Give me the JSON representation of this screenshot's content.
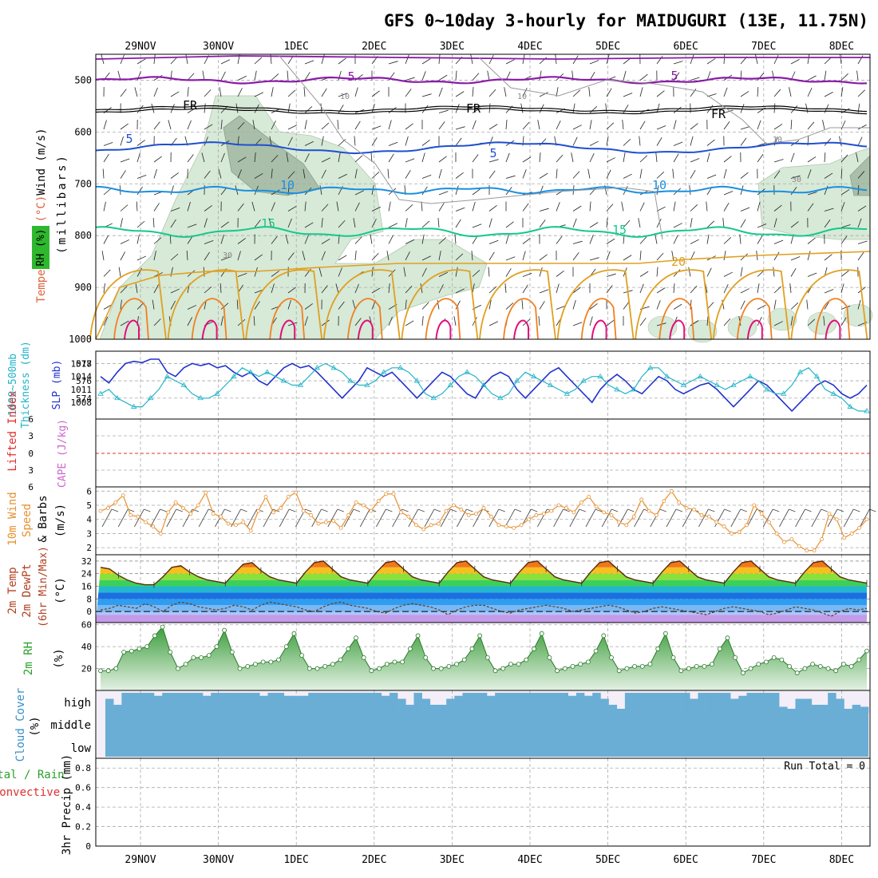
{
  "title": "GFS 0~10day 3-hourly for MAIDUGURI (13E, 11.75N)",
  "date_labels": [
    "29NOV",
    "30NOV",
    "1DEC",
    "2DEC",
    "3DEC",
    "4DEC",
    "5DEC",
    "6DEC",
    "7DEC",
    "8DEC"
  ],
  "colors": {
    "grid": "#aaaaaa",
    "rh_shade": "#d7e9d7",
    "rh_dark": "#a9bfa9",
    "purple": "#8a1aa8",
    "blue": "#1f4fd0",
    "lightblue": "#1a8fe0",
    "teal": "#14c88c",
    "gold": "#e0a020",
    "orange": "#f08020",
    "magenta": "#e0107a",
    "slp": "#2233cc",
    "thick": "#22b4c8",
    "wind10": "#e89030",
    "rh2m": "#2ca02c",
    "cloud": "#6aaed6",
    "cloud_bg": "#f3eef7",
    "red": "#e03030",
    "cape": "#cc66cc"
  },
  "chart_data": [
    {
      "panel": "upper-air",
      "type": "contour",
      "ylabel_parts": [
        "Wind (m/s)",
        "Temperature (°C)",
        "RH (%)",
        "(millibars)"
      ],
      "y_ticks": [
        500,
        600,
        700,
        800,
        900,
        1000
      ],
      "ylim": [
        450,
        1000
      ],
      "contour_labels": {
        "temperature": [
          "5",
          "5",
          "FR",
          "FR",
          "FR",
          "5",
          "5",
          "10",
          "10",
          "15",
          "15",
          "20"
        ],
        "rh": [
          "10",
          "10",
          "10",
          "30",
          "30"
        ]
      },
      "isotherms_hpa": {
        "minus5": [
          500,
          505
        ],
        "freezing": [
          555,
          565
        ],
        "plus5": [
          615,
          655
        ],
        "plus10": [
          700,
          725
        ],
        "plus15": [
          785,
          825
        ],
        "plus20": [
          850,
          900
        ]
      }
    },
    {
      "panel": "slp-thickness",
      "type": "line",
      "ylabel_parts": [
        "1000~500mb",
        "Thickness (dm)",
        "SLP (mb)"
      ],
      "left_ticks": [
        574,
        576,
        578
      ],
      "right_ticks": [
        1008,
        1011,
        1014,
        1017
      ],
      "series": [
        {
          "name": "SLP (mb)",
          "axis": "right",
          "values": [
            1014,
            1012.5,
            1015,
            1017,
            1017.5,
            1017.2,
            1018,
            1018,
            1015,
            1014,
            1016,
            1017,
            1016.5,
            1017,
            1016,
            1016.5,
            1015,
            1014,
            1015,
            1013,
            1012,
            1014,
            1016,
            1017,
            1016,
            1016.5,
            1015,
            1013,
            1011,
            1009,
            1011,
            1013,
            1016,
            1015,
            1014,
            1015,
            1013,
            1011,
            1009,
            1011,
            1013,
            1015,
            1014,
            1012,
            1010,
            1009,
            1012,
            1014,
            1015,
            1014,
            1011,
            1009,
            1011,
            1013,
            1015,
            1016,
            1014,
            1012,
            1010,
            1008,
            1011,
            1013,
            1014.5,
            1013,
            1011,
            1010,
            1012,
            1014,
            1013,
            1011,
            1010,
            1011,
            1012,
            1012.5,
            1011,
            1009,
            1007,
            1009,
            1011,
            1013,
            1012,
            1010,
            1008,
            1006,
            1008,
            1010,
            1012,
            1013,
            1012,
            1010,
            1009,
            1010,
            1012
          ]
        },
        {
          "name": "Thickness (dm)",
          "axis": "left",
          "values": [
            574.5,
            575,
            574,
            573.5,
            573,
            573,
            574,
            575,
            576.5,
            576,
            575.5,
            574.5,
            574,
            574,
            574.5,
            575.5,
            576.5,
            577.5,
            577,
            576.5,
            577,
            576.5,
            576,
            575.5,
            575.5,
            576.5,
            577.5,
            578,
            577.5,
            577,
            576,
            575.5,
            575.5,
            576,
            577,
            577.5,
            577.5,
            577,
            576,
            574.5,
            574,
            574.5,
            575.5,
            576.5,
            577,
            576.5,
            575.5,
            574.5,
            574,
            574.5,
            576,
            577,
            576.5,
            576,
            575.5,
            575,
            574.5,
            575,
            576,
            576.5,
            576.5,
            575.5,
            575,
            574.5,
            575,
            576.5,
            577.5,
            577.5,
            576.5,
            576,
            575.5,
            576,
            576.5,
            576,
            575.5,
            575,
            575.5,
            576,
            576.5,
            576,
            575,
            574.5,
            574.5,
            575.5,
            577,
            577.5,
            576.5,
            575,
            574.5,
            574,
            573,
            572.5,
            572.5
          ]
        }
      ]
    },
    {
      "panel": "cape-lifted-index",
      "type": "line",
      "ylabel_parts": [
        "Lifted Index",
        "CAPE (J/kg)"
      ],
      "y_ticks": [
        "6",
        "3",
        "0",
        "3",
        "6"
      ],
      "series": []
    },
    {
      "panel": "10m-wind",
      "type": "line",
      "ylabel_parts": [
        "10m Wind",
        "Speed",
        "& Barbs",
        "(m/s)"
      ],
      "y_ticks": [
        2,
        3,
        4,
        5,
        6
      ],
      "ylim": [
        1.5,
        6.3
      ],
      "series": [
        {
          "name": "10m Wind Speed",
          "values": [
            4.6,
            4.8,
            5.2,
            5.7,
            4.3,
            4.2,
            3.8,
            3.5,
            3.0,
            4.5,
            5.2,
            4.8,
            4.4,
            5.0,
            5.9,
            4.4,
            4.2,
            3.7,
            3.6,
            3.8,
            3.2,
            4.6,
            5.6,
            4.5,
            4.8,
            5.6,
            5.9,
            4.6,
            4.3,
            3.7,
            3.8,
            3.9,
            3.4,
            4.3,
            5.2,
            5.0,
            4.6,
            5.3,
            5.8,
            5.8,
            4.5,
            4.2,
            3.6,
            3.3,
            3.6,
            3.7,
            4.6,
            5.0,
            4.7,
            4.3,
            4.4,
            4.8,
            4.2,
            3.6,
            3.5,
            3.4,
            3.6,
            4.0,
            4.3,
            4.4,
            4.6,
            5.0,
            4.8,
            4.5,
            5.2,
            5.6,
            4.9,
            4.5,
            4.3,
            3.8,
            3.6,
            4.2,
            5.4,
            4.6,
            4.3,
            5.3,
            6.0,
            5.2,
            4.8,
            4.7,
            4.3,
            4.2,
            3.8,
            3.5,
            3.0,
            3.1,
            3.6,
            5.0,
            4.4,
            3.8,
            3.0,
            2.4,
            2.6,
            2.1,
            1.8,
            1.8,
            2.6,
            4.4,
            4.0,
            2.7,
            3.0,
            3.4,
            4.0
          ]
        }
      ]
    },
    {
      "panel": "2m-temp",
      "type": "line",
      "ylabel_parts": [
        "2m Temp",
        "2m DewPt",
        "(6hr Min/Max)",
        "(°C)"
      ],
      "y_ticks": [
        0,
        8,
        16,
        24,
        32
      ],
      "ylim": [
        -7,
        36
      ],
      "series": [
        {
          "name": "2m Temp",
          "values": [
            28,
            27,
            23,
            20,
            18,
            17,
            17,
            22,
            28,
            29,
            25,
            22,
            20,
            19,
            18,
            24,
            30,
            31,
            26,
            22,
            20,
            19,
            18,
            25,
            31,
            32,
            27,
            22,
            20,
            19,
            18,
            25,
            31,
            32,
            27,
            22,
            20,
            19,
            18,
            25,
            31,
            32,
            27,
            22,
            20,
            19,
            18,
            25,
            31,
            32,
            27,
            22,
            20,
            19,
            18,
            25,
            31,
            32,
            27,
            22,
            20,
            19,
            18,
            25,
            31,
            32,
            27,
            22,
            20,
            19,
            18,
            25,
            31,
            32,
            27,
            22,
            20,
            19,
            18,
            25,
            31,
            32,
            27,
            22,
            20,
            19,
            18
          ]
        },
        {
          "name": "2m DewPt",
          "values": [
            1,
            2,
            4,
            3,
            2,
            5,
            3,
            0,
            4,
            6,
            5,
            3,
            2,
            1,
            2,
            4,
            3,
            1,
            4,
            6,
            5,
            4,
            3,
            1,
            0,
            3,
            5,
            6,
            4,
            3,
            2,
            0,
            -1,
            2,
            4,
            5,
            4,
            3,
            1,
            -2,
            1,
            3,
            4,
            4,
            2,
            0,
            -1,
            1,
            2,
            3,
            4,
            3,
            2,
            0,
            1,
            2,
            3,
            4,
            3,
            1,
            -1,
            0,
            2,
            3,
            2,
            1,
            0,
            -1,
            -2,
            0,
            2,
            3,
            2,
            1,
            0,
            -2,
            -1,
            1,
            3,
            2,
            1,
            -1,
            -3,
            0,
            2,
            1,
            2
          ]
        }
      ]
    },
    {
      "panel": "2m-rh",
      "type": "area",
      "ylabel_parts": [
        "2m RH",
        "(%)"
      ],
      "y_ticks": [
        20,
        40,
        60
      ],
      "ylim": [
        0,
        62
      ],
      "series": [
        {
          "name": "2m RH",
          "values": [
            18,
            18,
            20,
            35,
            36,
            38,
            40,
            50,
            58,
            35,
            20,
            24,
            30,
            30,
            32,
            40,
            55,
            35,
            20,
            22,
            24,
            26,
            26,
            28,
            40,
            52,
            32,
            20,
            20,
            22,
            24,
            28,
            38,
            48,
            30,
            18,
            20,
            24,
            26,
            26,
            38,
            50,
            30,
            20,
            20,
            22,
            24,
            28,
            38,
            50,
            30,
            18,
            20,
            24,
            24,
            28,
            38,
            52,
            30,
            18,
            20,
            22,
            24,
            26,
            36,
            50,
            30,
            18,
            20,
            22,
            22,
            24,
            38,
            52,
            30,
            18,
            20,
            22,
            22,
            24,
            38,
            48,
            30,
            16,
            20,
            24,
            26,
            30,
            28,
            22,
            16,
            20,
            24,
            22,
            20,
            18,
            24,
            22,
            28,
            36
          ]
        }
      ]
    },
    {
      "panel": "cloud-cover",
      "type": "bar",
      "ylabel_parts": [
        "Cloud Cover",
        "(%)"
      ],
      "y_ticks": [
        "high",
        "middle",
        "low"
      ],
      "series": [
        {
          "name": "high",
          "values": [
            0.7,
            0.4,
            1,
            1,
            1,
            1,
            0.85,
            1,
            1,
            1,
            1,
            1,
            0.85,
            1,
            1,
            1,
            1,
            1,
            1,
            0.85,
            1,
            1,
            0.85,
            0.85,
            0.85,
            1,
            1,
            1,
            1,
            1,
            1,
            1,
            1,
            1,
            0.85,
            1,
            0.7,
            0.4,
            1,
            0.7,
            0.4,
            0.4,
            0.7,
            0.85,
            1,
            1,
            1,
            0.85,
            1,
            1,
            1,
            1,
            1,
            1,
            1,
            1,
            1,
            0.85,
            1,
            0.85,
            1,
            0.7,
            0.4,
            0.2,
            1,
            1,
            1,
            1,
            1,
            1,
            1,
            1,
            0.7,
            1,
            1,
            1,
            1,
            0.7,
            0.85,
            1,
            1,
            1,
            1,
            0.3,
            0.2,
            0.7,
            0.7,
            0.4,
            0.4,
            1,
            0.7,
            0.2,
            0.4,
            0.3
          ]
        },
        {
          "name": "middle",
          "values": []
        },
        {
          "name": "low",
          "values": []
        }
      ]
    },
    {
      "panel": "precip",
      "type": "bar",
      "ylabel_parts": [
        "Total / Rain",
        "Convective",
        "3hr Precip (mm)"
      ],
      "y_ticks": [
        "0",
        "0.2",
        "0.4",
        "0.6",
        "0.8"
      ],
      "ylim": [
        0,
        0.9
      ],
      "annotation": "Run Total = 0",
      "series": []
    }
  ]
}
